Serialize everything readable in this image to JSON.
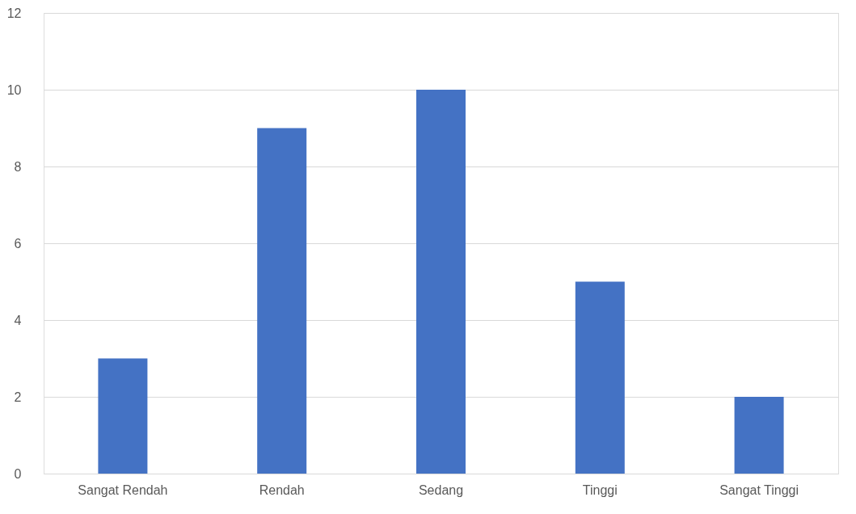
{
  "chart_data": {
    "type": "bar",
    "categories": [
      "Sangat Rendah",
      "Rendah",
      "Sedang",
      "Tinggi",
      "Sangat Tinggi"
    ],
    "values": [
      3,
      9,
      10,
      5,
      2
    ],
    "color": "#4472c4",
    "ylim": [
      0,
      12
    ],
    "yticks": [
      0,
      2,
      4,
      6,
      8,
      10,
      12
    ],
    "grid": "y"
  }
}
